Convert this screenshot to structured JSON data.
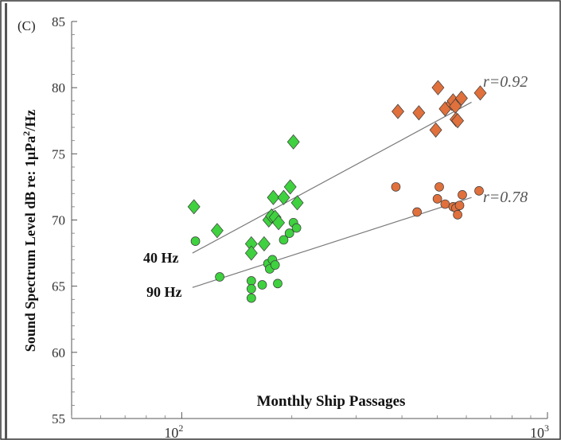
{
  "panel_label": "(C)",
  "chart_data": {
    "type": "scatter",
    "x_scale": "log",
    "xlim": [
      50,
      1000
    ],
    "ylim": [
      55,
      85
    ],
    "xlabel": "Monthly Ship Passages",
    "ylabel": "Sound Spectrum Level dB re: 1μPa²/Hz",
    "ylabel_parts": {
      "main": "Sound Spectrum Level dB re: 1μPa",
      "sup": "2",
      "tail": "/Hz"
    },
    "y_ticks": [
      55,
      60,
      65,
      70,
      75,
      80,
      85
    ],
    "x_tick_labels": [
      {
        "value": 100,
        "base": "10",
        "exp": "2"
      },
      {
        "value": 1000,
        "base": "10",
        "exp": "3"
      }
    ],
    "colors": {
      "green_fill": "#3fd13f",
      "orange_fill": "#e0703c",
      "line": "#7a7a7a",
      "edge": "#3a3a3a"
    },
    "series": [
      {
        "name": "40 Hz",
        "marker": "diamond",
        "correlation": "r=0.92",
        "fit": {
          "x": [
            107,
            620
          ],
          "y": [
            67.5,
            78.9
          ]
        },
        "points_green": [
          [
            108,
            71.0
          ],
          [
            125,
            69.2
          ],
          [
            155,
            68.2
          ],
          [
            155,
            67.5
          ],
          [
            168,
            68.2
          ],
          [
            173,
            70.0
          ],
          [
            176,
            70.3
          ],
          [
            178,
            71.7
          ],
          [
            180,
            70.2
          ],
          [
            184,
            69.8
          ],
          [
            190,
            71.7
          ],
          [
            198,
            72.5
          ],
          [
            202,
            75.9
          ],
          [
            207,
            71.3
          ]
        ],
        "points_orange": [
          [
            390,
            78.2
          ],
          [
            445,
            78.1
          ],
          [
            495,
            76.8
          ],
          [
            502,
            80.0
          ],
          [
            525,
            78.4
          ],
          [
            548,
            78.8
          ],
          [
            552,
            79.0
          ],
          [
            560,
            78.6
          ],
          [
            562,
            77.6
          ],
          [
            568,
            77.5
          ],
          [
            582,
            79.2
          ],
          [
            655,
            79.6
          ]
        ]
      },
      {
        "name": "90 Hz",
        "marker": "circle",
        "correlation": "r=0.78",
        "fit": {
          "x": [
            107,
            620
          ],
          "y": [
            64.9,
            71.7
          ]
        },
        "points_green": [
          [
            109,
            68.4
          ],
          [
            127,
            65.7
          ],
          [
            155,
            65.4
          ],
          [
            155,
            64.8
          ],
          [
            155,
            64.1
          ],
          [
            166,
            65.1
          ],
          [
            172,
            66.7
          ],
          [
            174,
            66.3
          ],
          [
            177,
            67.0
          ],
          [
            180,
            66.6
          ],
          [
            183,
            65.2
          ],
          [
            190,
            68.5
          ],
          [
            197,
            69.0
          ],
          [
            202,
            69.8
          ],
          [
            206,
            69.4
          ]
        ],
        "points_orange": [
          [
            385,
            72.5
          ],
          [
            440,
            70.6
          ],
          [
            500,
            71.6
          ],
          [
            506,
            72.5
          ],
          [
            525,
            71.2
          ],
          [
            552,
            71.0
          ],
          [
            562,
            70.9
          ],
          [
            568,
            70.4
          ],
          [
            575,
            71.1
          ],
          [
            585,
            71.9
          ],
          [
            650,
            72.2
          ]
        ]
      }
    ]
  }
}
